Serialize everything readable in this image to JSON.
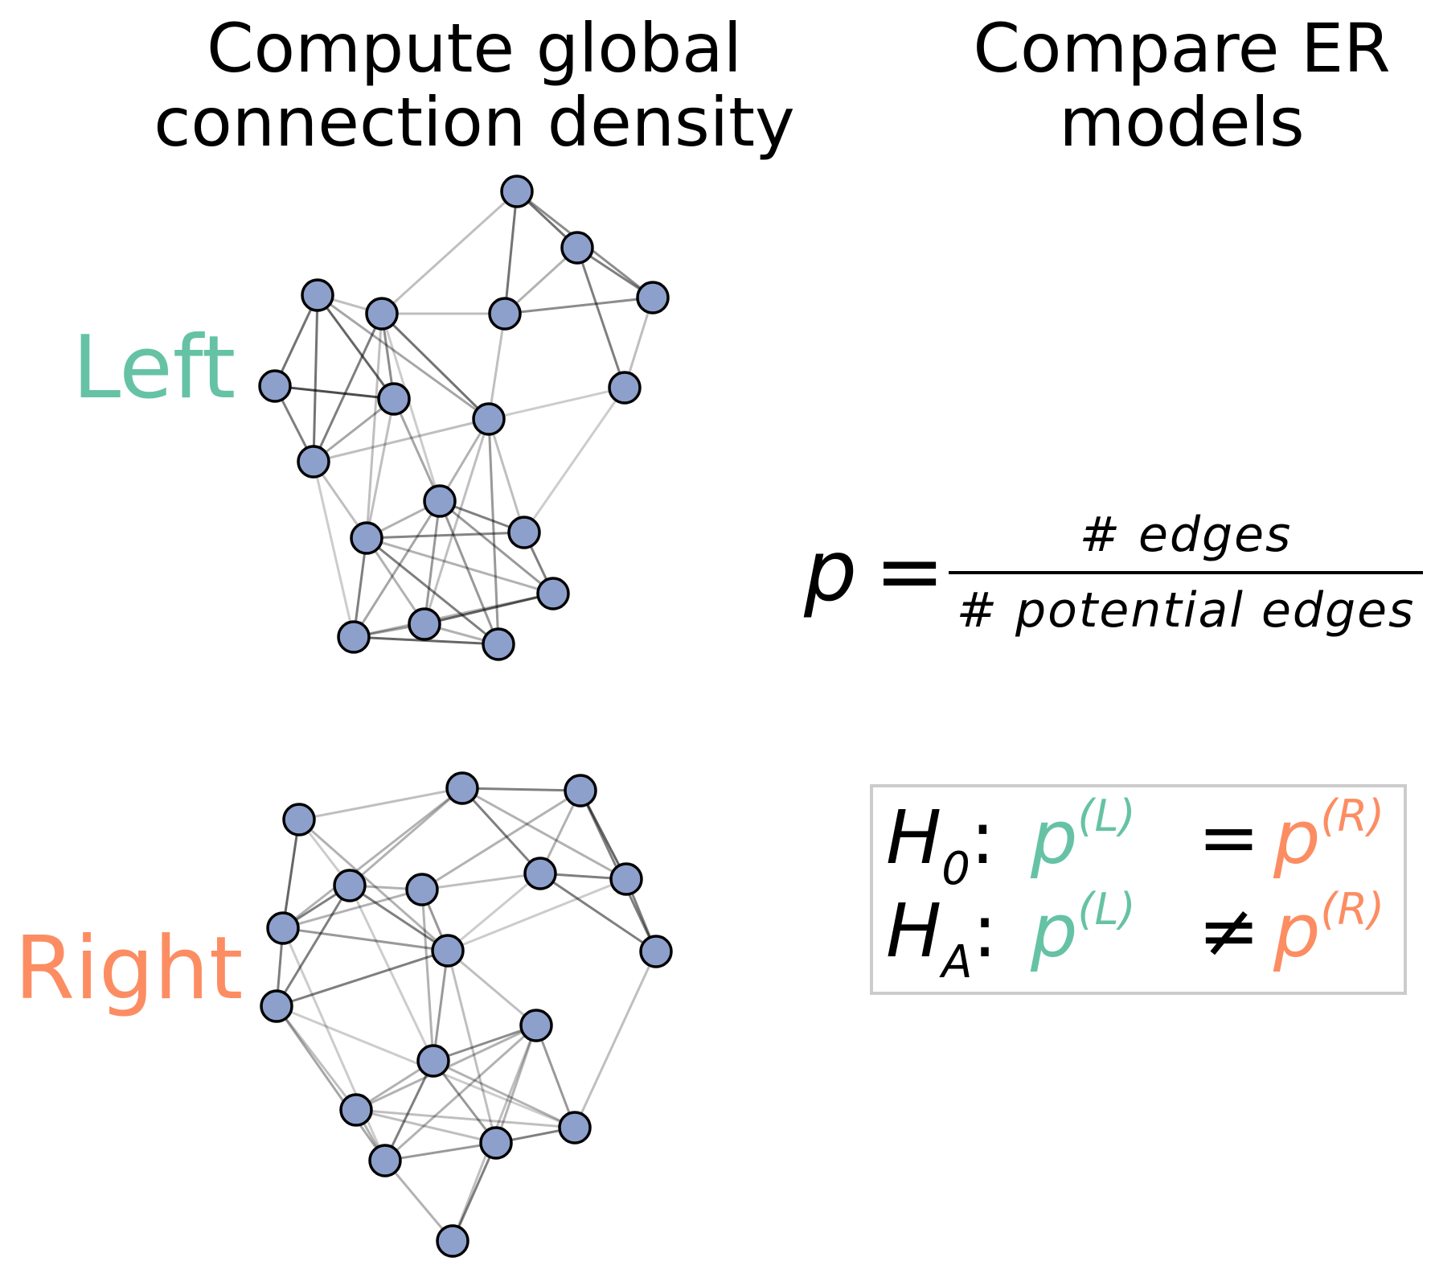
{
  "headings": {
    "left": [
      "Compute global",
      "connection density"
    ],
    "right": [
      "Compare ER",
      "models"
    ]
  },
  "labels": {
    "left": "Left",
    "right": "Right"
  },
  "colors": {
    "left": "#66c2a5",
    "right": "#fc8d62",
    "node_fill": "#8da0cb",
    "node_stroke": "#000000",
    "edge": "#000000",
    "box_border": "#cccccc"
  },
  "formula": {
    "lhs": "p",
    "equals": "=",
    "numerator": "# edges",
    "denominator": "# potential edges"
  },
  "hypotheses": [
    {
      "symbol": "H",
      "subscript": "0",
      "colon": ":",
      "p_left": "p",
      "sup_left": "(L)",
      "relation": "=",
      "p_right": "p",
      "sup_right": "(R)"
    },
    {
      "symbol": "H",
      "subscript": "A",
      "colon": ":",
      "p_left": "p",
      "sup_left": "(L)",
      "relation": "≠",
      "p_right": "p",
      "sup_right": "(R)"
    }
  ]
}
